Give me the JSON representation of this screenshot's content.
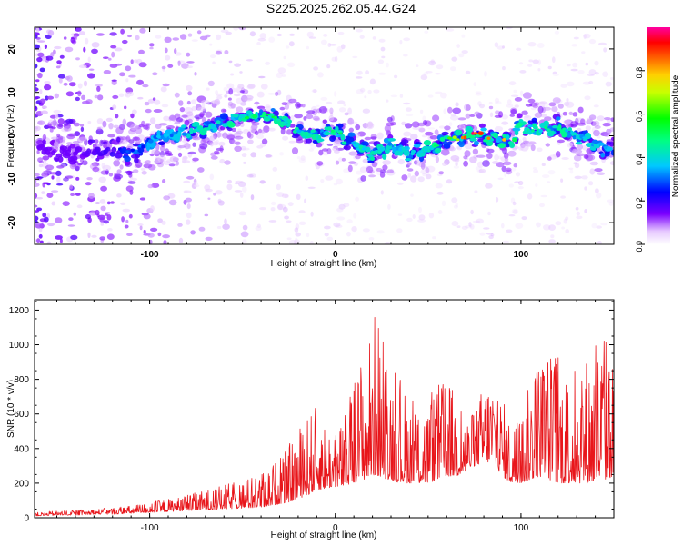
{
  "page_title": "S225.2025.262.05.44.G24",
  "colors": {
    "snr_line": "#e8161b",
    "axis": "#000000"
  },
  "chart_data": [
    {
      "type": "heatmap",
      "title": "S225.2025.262.05.44.G24",
      "xlabel": "Height of straight line (km)",
      "ylabel": "Frequency (Hz)",
      "xlim": [
        -162,
        150
      ],
      "ylim": [
        -25,
        25
      ],
      "xticks": [
        -100,
        0,
        100
      ],
      "yticks": [
        -20,
        -10,
        0,
        10,
        20
      ],
      "xtick_labels": [
        "-100",
        "0",
        "100"
      ],
      "ytick_labels": [
        "-20",
        "-10",
        "0",
        "10",
        "20"
      ],
      "colorbar": {
        "label": "Normalized spectral amplitude",
        "range": [
          0,
          1
        ],
        "ticks": [
          0.0,
          0.2,
          0.4,
          0.6,
          0.8
        ],
        "tick_labels": [
          "0.0",
          "0.2",
          "0.4",
          "0.6",
          "0.8"
        ],
        "colormap": "rainbow (white/purple at 0 to magenta at 1)"
      },
      "ridge": {
        "description": "Frequency ridge of peak spectral amplitude vs height",
        "x": [
          -160,
          -140,
          -120,
          -110,
          -100,
          -90,
          -80,
          -70,
          -60,
          -50,
          -40,
          -30,
          -20,
          -10,
          0,
          10,
          20,
          30,
          40,
          50,
          60,
          70,
          80,
          90,
          95,
          100,
          110,
          120,
          130,
          140,
          148
        ],
        "y": [
          -3,
          -4,
          -3,
          -4,
          -1,
          0,
          1,
          2,
          3,
          4,
          5,
          4,
          1,
          0,
          1,
          -2,
          -4,
          -2,
          -4,
          -3,
          -1,
          0,
          0,
          -1,
          -2,
          3,
          1,
          2,
          0,
          -2,
          -3
        ],
        "amplitude": [
          0.15,
          0.15,
          0.2,
          0.3,
          0.35,
          0.35,
          0.4,
          0.45,
          0.45,
          0.5,
          0.55,
          0.5,
          0.45,
          0.45,
          0.55,
          0.45,
          0.45,
          0.4,
          0.4,
          0.45,
          0.6,
          0.95,
          1.0,
          0.9,
          0.55,
          0.5,
          0.45,
          0.5,
          0.4,
          0.4,
          0.35
        ]
      }
    },
    {
      "type": "line",
      "xlabel": "Height of straight line (km)",
      "ylabel": "SNR (10 * v/v)",
      "xlim": [
        -162,
        150
      ],
      "ylim": [
        0,
        1260
      ],
      "xticks": [
        -100,
        0,
        100
      ],
      "yticks": [
        0,
        200,
        400,
        600,
        800,
        1000,
        1200
      ],
      "xtick_labels": [
        "-100",
        "0",
        "100"
      ],
      "ytick_labels": [
        "0",
        "200",
        "400",
        "600",
        "800",
        "1000",
        "1200"
      ],
      "series": [
        {
          "name": "SNR",
          "color": "#e8161b",
          "x": [
            -162,
            -150,
            -140,
            -130,
            -120,
            -110,
            -100,
            -90,
            -80,
            -70,
            -60,
            -50,
            -40,
            -35,
            -30,
            -25,
            -20,
            -15,
            -10,
            -5,
            0,
            5,
            10,
            15,
            20,
            22,
            25,
            30,
            35,
            40,
            45,
            50,
            55,
            60,
            65,
            70,
            75,
            80,
            85,
            90,
            95,
            100,
            105,
            110,
            115,
            120,
            125,
            130,
            135,
            140,
            145,
            150
          ],
          "y": [
            30,
            40,
            45,
            50,
            60,
            70,
            90,
            110,
            130,
            160,
            190,
            220,
            260,
            300,
            360,
            420,
            520,
            600,
            650,
            560,
            480,
            600,
            800,
            1000,
            1100,
            1260,
            1050,
            900,
            800,
            700,
            650,
            700,
            780,
            820,
            720,
            600,
            600,
            800,
            850,
            700,
            550,
            600,
            800,
            950,
            1000,
            950,
            850,
            900,
            950,
            1050,
            1100,
            900
          ],
          "noise_floor": [
            10,
            15,
            15,
            20,
            20,
            25,
            30,
            35,
            40,
            45,
            50,
            55,
            60,
            70,
            80,
            90,
            110,
            130,
            160,
            170,
            180,
            180,
            200,
            220,
            240,
            250,
            230,
            220,
            200,
            200,
            200,
            200,
            220,
            240,
            240,
            260,
            300,
            320,
            320,
            240,
            200,
            200,
            220,
            240,
            220,
            200,
            200,
            200,
            200,
            200,
            220,
            240
          ]
        }
      ]
    }
  ]
}
